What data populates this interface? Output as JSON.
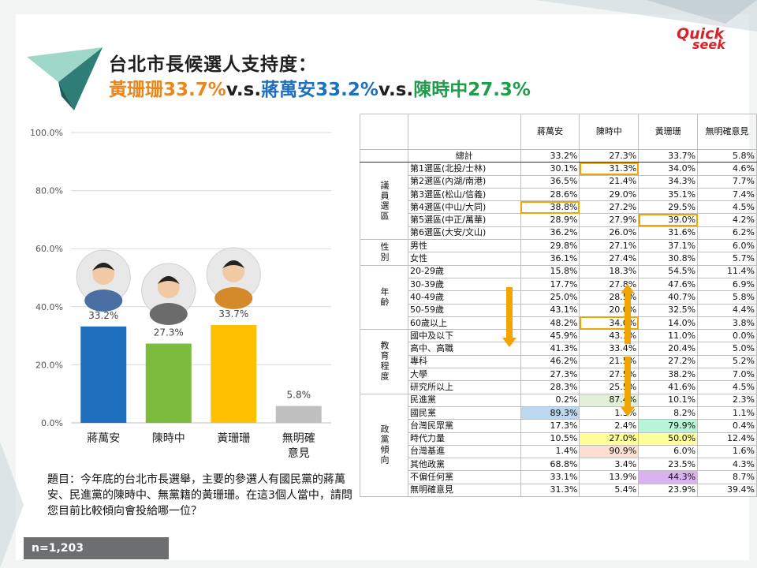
{
  "title": {
    "line1": "台北市長候選人支持度：",
    "line2_parts": [
      {
        "text": "黃珊珊33.7%",
        "color": "#e8871e"
      },
      {
        "text": "v.s.",
        "color": "#1f1f1f"
      },
      {
        "text": "蔣萬安33.2%",
        "color": "#1f6fbf"
      },
      {
        "text": "v.s.",
        "color": "#1f1f1f"
      },
      {
        "text": "陳時中27.3%",
        "color": "#1e9e4a"
      }
    ]
  },
  "logo": {
    "line1": "Quick",
    "line2": "seek"
  },
  "chart_data": {
    "type": "bar",
    "categories": [
      "蔣萬安",
      "陳時中",
      "黃珊珊",
      "無明確\n意見"
    ],
    "values": [
      33.2,
      27.3,
      33.7,
      5.8
    ],
    "value_labels": [
      "33.2%",
      "27.3%",
      "33.7%",
      "5.8%"
    ],
    "colors": [
      "#1f6fbf",
      "#7dbb3e",
      "#ffc000",
      "#bfbfbf"
    ],
    "ylim": [
      0,
      100
    ],
    "yticks": [
      "0.0%",
      "20.0%",
      "40.0%",
      "60.0%",
      "80.0%",
      "100.0%"
    ],
    "grid": true
  },
  "question": "題目：今年底的台北市長選舉，主要的參選人有國民黨的蔣萬安、民進黨的陳時中、無黨籍的黃珊珊。在這3個人當中，請問您目前比較傾向會投給哪一位？",
  "sample": "n=1,203",
  "table": {
    "headers": [
      "蔣萬安",
      "陳時中",
      "黃珊珊",
      "無明確意見"
    ],
    "total": {
      "label": "總計",
      "values": [
        "33.2%",
        "27.3%",
        "33.7%",
        "5.8%"
      ]
    },
    "groups": [
      {
        "name": "議員選區",
        "rows": [
          {
            "label": "第1選區(北投/士林)",
            "values": [
              "30.1%",
              "31.3%",
              "34.0%",
              "4.6%"
            ]
          },
          {
            "label": "第2選區(內湖/南港)",
            "values": [
              "36.5%",
              "21.4%",
              "34.3%",
              "7.7%"
            ]
          },
          {
            "label": "第3選區(松山/信義)",
            "values": [
              "28.6%",
              "29.0%",
              "35.1%",
              "7.4%"
            ]
          },
          {
            "label": "第4選區(中山/大同)",
            "values": [
              "38.8%",
              "27.2%",
              "29.5%",
              "4.5%"
            ]
          },
          {
            "label": "第5選區(中正/萬華)",
            "values": [
              "28.9%",
              "27.9%",
              "39.0%",
              "4.2%"
            ]
          },
          {
            "label": "第6選區(大安/文山)",
            "values": [
              "36.2%",
              "26.0%",
              "31.6%",
              "6.2%"
            ]
          }
        ]
      },
      {
        "name": "性別",
        "rows": [
          {
            "label": "男性",
            "values": [
              "29.8%",
              "27.1%",
              "37.1%",
              "6.0%"
            ]
          },
          {
            "label": "女性",
            "values": [
              "36.1%",
              "27.4%",
              "30.8%",
              "5.7%"
            ]
          }
        ]
      },
      {
        "name": "年齡",
        "rows": [
          {
            "label": "20-29歲",
            "values": [
              "15.8%",
              "18.3%",
              "54.5%",
              "11.4%"
            ]
          },
          {
            "label": "30-39歲",
            "values": [
              "17.7%",
              "27.8%",
              "47.6%",
              "6.9%"
            ]
          },
          {
            "label": "40-49歲",
            "values": [
              "25.0%",
              "28.5%",
              "40.7%",
              "5.8%"
            ]
          },
          {
            "label": "50-59歲",
            "values": [
              "43.1%",
              "20.0%",
              "32.5%",
              "4.4%"
            ]
          },
          {
            "label": "60歲以上",
            "values": [
              "48.2%",
              "34.0%",
              "14.0%",
              "3.8%"
            ]
          }
        ]
      },
      {
        "name": "教育程度",
        "rows": [
          {
            "label": "國中及以下",
            "values": [
              "45.9%",
              "43.1%",
              "11.0%",
              "0.0%"
            ]
          },
          {
            "label": "高中、高職",
            "values": [
              "41.3%",
              "33.4%",
              "20.4%",
              "5.0%"
            ]
          },
          {
            "label": "專科",
            "values": [
              "46.2%",
              "21.5%",
              "27.2%",
              "5.2%"
            ]
          },
          {
            "label": "大學",
            "values": [
              "27.3%",
              "27.5%",
              "38.2%",
              "7.0%"
            ]
          },
          {
            "label": "研究所以上",
            "values": [
              "28.3%",
              "25.5%",
              "41.6%",
              "4.5%"
            ]
          }
        ]
      },
      {
        "name": "政黨傾向",
        "rows": [
          {
            "label": "民進黨",
            "values": [
              "0.2%",
              "87.4%",
              "10.1%",
              "2.3%"
            ]
          },
          {
            "label": "國民黨",
            "values": [
              "89.3%",
              "1.3%",
              "8.2%",
              "1.1%"
            ]
          },
          {
            "label": "台灣民眾黨",
            "values": [
              "17.3%",
              "2.4%",
              "79.9%",
              "0.4%"
            ]
          },
          {
            "label": "時代力量",
            "values": [
              "10.5%",
              "27.0%",
              "50.0%",
              "12.4%"
            ]
          },
          {
            "label": "台灣基進",
            "values": [
              "1.4%",
              "90.9%",
              "6.0%",
              "1.6%"
            ]
          },
          {
            "label": "其他政黨",
            "values": [
              "68.8%",
              "3.4%",
              "23.5%",
              "4.3%"
            ]
          },
          {
            "label": "不偏任何黨",
            "values": [
              "33.1%",
              "13.9%",
              "44.3%",
              "8.7%"
            ]
          },
          {
            "label": "無明確意見",
            "values": [
              "31.3%",
              "5.4%",
              "23.9%",
              "39.4%"
            ]
          }
        ]
      }
    ],
    "highlight_colors": {
      "orange_box": "#f0a500",
      "green_fill": "#e2efd9",
      "blue_fill": "#bdd7ee",
      "teal_fill": "#b8f5d8",
      "yellow_fill": "#ffff99",
      "pink_fill": "#fbe0d2",
      "purple_fill": "#d9b3f0",
      "arrow": "#f0a500"
    }
  }
}
